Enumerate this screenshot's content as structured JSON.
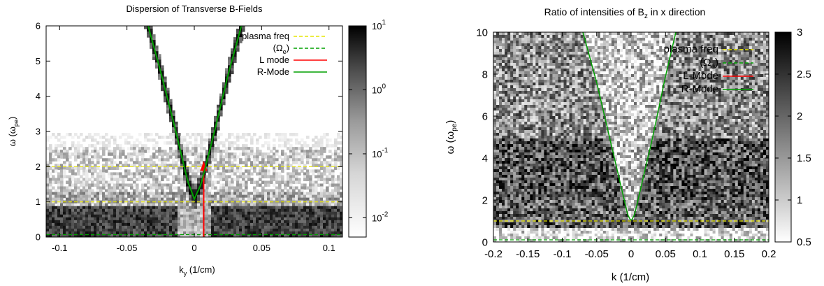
{
  "chart_data": [
    {
      "type": "heatmap",
      "title": "Dispersion of Transverse B-Fields",
      "xlabel": {
        "base": "k",
        "sub": "y",
        "unit": " (1/cm)"
      },
      "ylabel": {
        "base": "ω (ω",
        "sub": "pe",
        "tail": ")"
      },
      "xlim": [
        -0.11,
        0.11
      ],
      "ylim": [
        0,
        6
      ],
      "x_ticks": [
        -0.1,
        -0.05,
        0,
        0.05,
        0.1
      ],
      "x_tick_labels": [
        "-0.1",
        "-0.05",
        "0",
        "0.05",
        "0.1"
      ],
      "y_ticks": [
        0,
        1,
        2,
        3,
        4,
        5,
        6
      ],
      "y_tick_labels": [
        "0",
        "1",
        "2",
        "3",
        "4",
        "5",
        "6"
      ],
      "colorbar": {
        "scale": "log",
        "range": [
          0.005,
          10
        ],
        "ticks": [
          {
            "base": "10",
            "exp": "1",
            "value": 10
          },
          {
            "base": "10",
            "exp": "0",
            "value": 1
          },
          {
            "base": "10",
            "exp": "-1",
            "value": 0.1
          },
          {
            "base": "10",
            "exp": "-2",
            "value": 0.01
          }
        ]
      },
      "legend_position": "top-right",
      "series": [
        {
          "name": "plasma freq",
          "kind": "hline",
          "y": [
            1,
            2
          ],
          "color": "#e6e600",
          "dash": true
        },
        {
          "name": "(Ω",
          "name_sub": "e",
          "name_tail": ")",
          "kind": "hline",
          "y": [
            0.07
          ],
          "color": "#00a000",
          "dash": true
        },
        {
          "name": "L mode",
          "kind": "vline",
          "x": 0.007,
          "y_range": [
            0,
            2.08
          ],
          "color": "#ff0000"
        },
        {
          "name": "R-Mode",
          "kind": "curve",
          "color": "#00a000",
          "x": [
            -0.045,
            -0.035,
            -0.025,
            -0.015,
            -0.005,
            0,
            0.005,
            0.015,
            0.025,
            0.035,
            0.045
          ],
          "y": [
            7.4,
            6.1,
            4.7,
            3.2,
            1.6,
            1.08,
            1.5,
            3.0,
            4.6,
            6.0,
            7.3
          ]
        }
      ]
    },
    {
      "type": "heatmap",
      "title": {
        "base": "Ratio of intensities of B",
        "sub": "z",
        "tail": " in x direction"
      },
      "xlabel": {
        "base": "k",
        "unit": " (1/cm)"
      },
      "ylabel": {
        "base": "ω (ω",
        "sub": "pe",
        "tail": ")"
      },
      "xlim": [
        -0.2,
        0.2
      ],
      "ylim": [
        0,
        10
      ],
      "x_ticks": [
        -0.2,
        -0.15,
        -0.1,
        -0.05,
        0,
        0.05,
        0.1,
        0.15,
        0.2
      ],
      "x_tick_labels": [
        "-0.2",
        "-0.15",
        "-0.1",
        "-0.05",
        "0",
        "0.05",
        "0.1",
        "0.15",
        "0.2"
      ],
      "y_ticks": [
        0,
        2,
        4,
        6,
        8,
        10
      ],
      "y_tick_labels": [
        "0",
        "2",
        "4",
        "6",
        "8",
        "10"
      ],
      "colorbar": {
        "scale": "linear",
        "range": [
          0.5,
          3
        ],
        "ticks": [
          {
            "label": "3",
            "value": 3
          },
          {
            "label": "2.5",
            "value": 2.5
          },
          {
            "label": "2",
            "value": 2
          },
          {
            "label": "1.5",
            "value": 1.5
          },
          {
            "label": "1",
            "value": 1
          },
          {
            "label": "0.5",
            "value": 0.5
          }
        ]
      },
      "legend_position": "top-right",
      "series": [
        {
          "name": "plasma freq",
          "kind": "hline",
          "y": [
            1
          ],
          "color": "#e6e600",
          "dash": true
        },
        {
          "name": "(Ω",
          "name_sub": "e",
          "name_tail": ")",
          "kind": "hline",
          "y": [
            0.1
          ],
          "color": "#00a000",
          "dash": true
        },
        {
          "name": "L-Mode",
          "kind": "none",
          "color": "#ff0000"
        },
        {
          "name": "R-Mode",
          "kind": "curve",
          "color": "#00a000",
          "x": [
            -0.07,
            -0.05,
            -0.03,
            -0.015,
            -0.005,
            0,
            0.005,
            0.015,
            0.03,
            0.05,
            0.065
          ],
          "y": [
            10.0,
            7.6,
            4.8,
            2.7,
            1.3,
            1.0,
            1.3,
            2.7,
            4.8,
            7.9,
            10.0
          ]
        }
      ]
    }
  ]
}
